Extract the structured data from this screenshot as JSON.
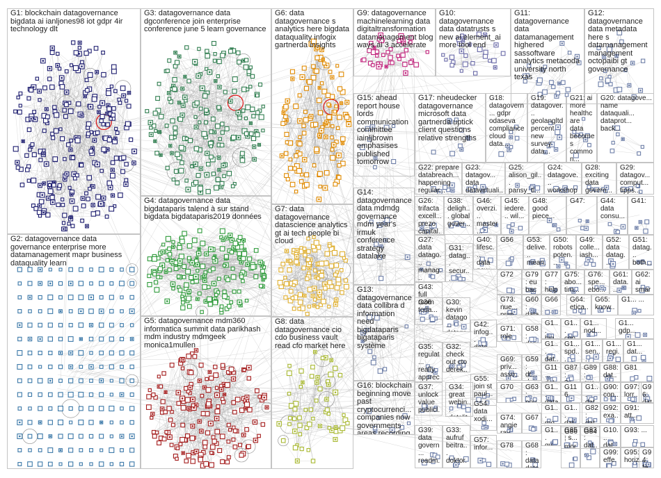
{
  "colors": {
    "border": "#c4c4c4",
    "edge": "#9a9a9a",
    "G1": "#1c1c6e",
    "G2": "#3b78a8",
    "G3": "#2f7d4f",
    "G4": "#2e9a3a",
    "G5": "#a41c1c",
    "G6": "#e08a00",
    "G7": "#e0b030",
    "G8": "#a8b830",
    "G9": "#c0207a",
    "G10": "#6a6aa8",
    "small": "#6e7fa8",
    "highlight": "#e01818"
  },
  "groups": [
    {
      "id": "G1",
      "label": "G1: blockchain datagovernance bigdata ai ianljones98 iot gdpr 4ir technology dlt",
      "density": 260
    },
    {
      "id": "G2",
      "label": "G2: datagovernance data governance enterprise more datamanagement mapr business dataquality learn",
      "density": 220
    },
    {
      "id": "G3",
      "label": "G3: datagovernance data dgconference join enterprise conference june 5 learn governance",
      "density": 200
    },
    {
      "id": "G4",
      "label": "G4: datagovernance data bigdataparis talend à sur stand bigdata bigdataparis2019 données",
      "density": 190
    },
    {
      "id": "G5",
      "label": "G5: datagovernance mdm360 informatica summit data parikhash mdm industry mdmgeek monica1mullen",
      "density": 180
    },
    {
      "id": "G6",
      "label": "G6: data datagovernance s analytics here bigdata dataquality infogix gartnerda insights",
      "density": 130
    },
    {
      "id": "G7",
      "label": "G7: data datagovernance datascience analytics gt ai tech people bi cloud",
      "density": 110
    },
    {
      "id": "G8",
      "label": "G8: data datagovernance cio cdo business vault read cfo market here",
      "density": 60
    },
    {
      "id": "G9",
      "label": "G9: datagovernance machinelearning data digitaltransformation datamanagement blog ways ai 3 accelerate",
      "density": 40
    },
    {
      "id": "G10",
      "label": "G10: datagovernance data datatrusts s new ai element_ai more tool end",
      "density": 28
    },
    {
      "id": "G11",
      "label": "G11: datagovernance data datamanagement highered sassoftware analytics metacoda university north texas",
      "density": 22
    },
    {
      "id": "G12",
      "label": "G12: datagovernance data metadata here s datamanagement management octopaibi gt governance",
      "density": 22
    },
    {
      "id": "G15",
      "label": "G15: ahead report house lords communication committee iainljbrown emphasises published tomorrow",
      "density": 10
    },
    {
      "id": "G17",
      "label": "G17: nheudecker datagovernance microsoft data gartnerda uptick client questions relative strengths",
      "density": 10
    },
    {
      "id": "G18",
      "label": "G18: datagovern... gdpr odaseva compliance cloud data...",
      "density": 8
    },
    {
      "id": "G19",
      "label": "G19: datagover... geolangltd percent new survey data...",
      "density": 8
    },
    {
      "id": "G21",
      "label": "G21: ai more healthcare data becomes common...",
      "density": 8
    },
    {
      "id": "G20",
      "label": "G20: datagove... name dataquali... dataprot... back...",
      "density": 8
    },
    {
      "id": "G22",
      "label": "G22: prepare databreach... happening regular...",
      "density": 6
    },
    {
      "id": "G23",
      "label": "G23: datagov... data datavirtuali...",
      "density": 6
    },
    {
      "id": "G25",
      "label": "G25: alison_gil... pansy_tl... sa...",
      "density": 6
    },
    {
      "id": "G24",
      "label": "G24: datagove... workshop köln...",
      "density": 6
    },
    {
      "id": "G28",
      "label": "G28: exciting data govern...",
      "density": 6
    },
    {
      "id": "G29",
      "label": "G29: datagov... comput... tipps...",
      "density": 6
    },
    {
      "id": "G14",
      "label": "G14: datagovernance data mdmdg governance mdm year's irmuk conference strategy datalake",
      "density": 10
    },
    {
      "id": "G26",
      "label": "G26: trifacta excell... prezo capital...",
      "density": 5
    },
    {
      "id": "G38",
      "label": "G38: deligh... global gover...",
      "density": 5
    },
    {
      "id": "G46",
      "label": "G46: overzi... master...",
      "density": 4
    },
    {
      "id": "G45",
      "label": "G45: iedere... wil...",
      "density": 4
    },
    {
      "id": "G48",
      "label": "G48: good piece...",
      "density": 4
    },
    {
      "id": "G47",
      "label": "G47:",
      "density": 4
    },
    {
      "id": "G44",
      "label": "G44: data consu...",
      "density": 4
    },
    {
      "id": "G41",
      "label": "G41:",
      "density": 4
    },
    {
      "id": "G27",
      "label": "G27: data datago... manag... stellar...",
      "density": 5
    },
    {
      "id": "G31",
      "label": "G31: datag... secur... sherp...",
      "density": 5
    },
    {
      "id": "G40",
      "label": "G40: lifesc... data new...",
      "density": 4
    },
    {
      "id": "G56",
      "label": "G56",
      "density": 4
    },
    {
      "id": "G53",
      "label": "G53: delive... mean...",
      "density": 4
    },
    {
      "id": "G50",
      "label": "G50: robots poten...",
      "density": 4
    },
    {
      "id": "G49",
      "label": "G49: colle... iash...",
      "density": 4
    },
    {
      "id": "G52",
      "label": "G52: data datag...",
      "density": 4
    },
    {
      "id": "G51",
      "label": "G51: datag... both...",
      "density": 4
    },
    {
      "id": "G13",
      "label": "G13: datagovernance data collibra d information need bigdataparis bigataparis système",
      "density": 12
    },
    {
      "id": "G43",
      "label": "G43: full room toda...",
      "density": 4
    },
    {
      "id": "G72",
      "label": "G72",
      "density": 3
    },
    {
      "id": "G79",
      "label": "G79: eu back...",
      "density": 3
    },
    {
      "id": "G77",
      "label": "G77: help bigd...",
      "density": 3
    },
    {
      "id": "G75",
      "label": "G75: abo... tim...",
      "density": 3
    },
    {
      "id": "G76",
      "label": "G76: spe... ebo...",
      "density": 3
    },
    {
      "id": "G61",
      "label": "G61: data... goo...",
      "density": 3
    },
    {
      "id": "G62",
      "label": "G62: ai smar...",
      "density": 3
    },
    {
      "id": "G36",
      "label": "G36",
      "density": 5
    },
    {
      "id": "G30",
      "label": "G30: kevin datago... datapr...",
      "density": 5
    },
    {
      "id": "G73",
      "label": "G73: nue... prim...",
      "density": 3
    },
    {
      "id": "G60",
      "label": "G60: data data...",
      "density": 3
    },
    {
      "id": "G66",
      "label": "G66",
      "density": 3
    },
    {
      "id": "G64",
      "label": "G64: etica...",
      "density": 3
    },
    {
      "id": "G65",
      "label": "G65: know...",
      "density": 3
    },
    {
      "id": "G1x",
      "label": "G1... ...",
      "density": 3
    },
    {
      "id": "G42",
      "label": "G42: infog... data...",
      "density": 4
    },
    {
      "id": "G71",
      "label": "G71: role",
      "density": 3
    },
    {
      "id": "G58",
      "label": "G58: des à don...",
      "density": 3
    },
    {
      "id": "G1a",
      "label": "G1... big...",
      "density": 3
    },
    {
      "id": "G1b",
      "label": "G1... con...",
      "density": 3
    },
    {
      "id": "G1c",
      "label": "G1... nod...",
      "density": 3
    },
    {
      "id": "G1d",
      "label": "G1... gdp...",
      "density": 3
    },
    {
      "id": "G35",
      "label": "G35: regulat... really apprec...",
      "density": 5
    },
    {
      "id": "G32",
      "label": "G32: check out cto derek...",
      "density": 5
    },
    {
      "id": "G69",
      "label": "G69: priv... asso...",
      "density": 3
    },
    {
      "id": "G59",
      "label": "G59: dt... data...",
      "density": 3
    },
    {
      "id": "G1e",
      "label": "G1... dat...",
      "density": 3
    },
    {
      "id": "G1f",
      "label": "G1... spd...",
      "density": 3
    },
    {
      "id": "G1g",
      "label": "G1... sen...",
      "density": 3
    },
    {
      "id": "G1h",
      "label": "G1... regi...",
      "density": 3
    },
    {
      "id": "G1i",
      "label": "G1... dat...",
      "density": 3
    },
    {
      "id": "G11x",
      "label": "G11... dat...",
      "density": 3
    },
    {
      "id": "G87",
      "label": "G87: 3p...",
      "density": 3
    },
    {
      "id": "G89",
      "label": "G89: eva...",
      "density": 3
    },
    {
      "id": "G88",
      "label": "G88: dat...",
      "density": 3
    },
    {
      "id": "G81",
      "label": "G81",
      "density": 3
    },
    {
      "id": "G16",
      "label": "G16: blockchain beginning move past cryptocurrenci... companies now governments areas recording",
      "density": 8
    },
    {
      "id": "G37",
      "label": "G37: unlock value publicl...",
      "density": 5
    },
    {
      "id": "G34",
      "label": "G34: great webin... datalit...",
      "density": 5
    },
    {
      "id": "G55",
      "label": "G55: join st paul...",
      "density": 4
    },
    {
      "id": "G70",
      "label": "G70",
      "density": 3
    },
    {
      "id": "G63",
      "label": "G63: nov tene...",
      "density": 3
    },
    {
      "id": "G1j",
      "label": "G1... data",
      "density": 3
    },
    {
      "id": "G116",
      "label": "G116",
      "density": 3
    },
    {
      "id": "G1k",
      "label": "G1... dat...",
      "density": 3
    },
    {
      "id": "G90",
      "label": "G90: con...",
      "density": 3
    },
    {
      "id": "G97",
      "label": "G97: lorr...",
      "density": 3
    },
    {
      "id": "G96",
      "label": "G96: dat...",
      "density": 3
    },
    {
      "id": "G54",
      "label": "G54: data xodi...",
      "density": 4
    },
    {
      "id": "G74",
      "label": "G74: angie ray...",
      "density": 3
    },
    {
      "id": "G67",
      "label": "G67",
      "density": 3
    },
    {
      "id": "G1l",
      "label": "G1... mo...",
      "density": 3
    },
    {
      "id": "G1m",
      "label": "G1... dat...",
      "density": 3
    },
    {
      "id": "G82",
      "label": "G82: dat...",
      "density": 3
    },
    {
      "id": "G92",
      "label": "G92: exa...",
      "density": 3
    },
    {
      "id": "G91",
      "label": "G91: att...",
      "density": 3
    },
    {
      "id": "G39",
      "label": "G39: data govern... roadm...",
      "density": 5
    },
    {
      "id": "G33",
      "label": "G33: aufruf beitra... doktor...",
      "density": 5
    },
    {
      "id": "G57",
      "label": "G57: infor...",
      "density": 4
    },
    {
      "id": "G78",
      "label": "G78",
      "density": 3
    },
    {
      "id": "G68",
      "label": "G68: data data...",
      "density": 3
    },
    {
      "id": "G1n",
      "label": "G1... qu...",
      "density": 3
    },
    {
      "id": "G85",
      "label": "G85: s...",
      "density": 3
    },
    {
      "id": "G83",
      "label": "G83: dat...",
      "density": 3
    },
    {
      "id": "G86",
      "label": "G86: mor...",
      "density": 3
    },
    {
      "id": "G84",
      "label": "G84",
      "density": 3
    },
    {
      "id": "G10x",
      "label": "G10... dat...",
      "density": 3
    },
    {
      "id": "G93",
      "label": "G93: ...",
      "density": 3
    },
    {
      "id": "G99",
      "label": "G99: effe...",
      "density": 3
    },
    {
      "id": "G95",
      "label": "G95: horiz...",
      "density": 3
    },
    {
      "id": "G94",
      "label": "G94: fe...",
      "density": 3
    }
  ]
}
